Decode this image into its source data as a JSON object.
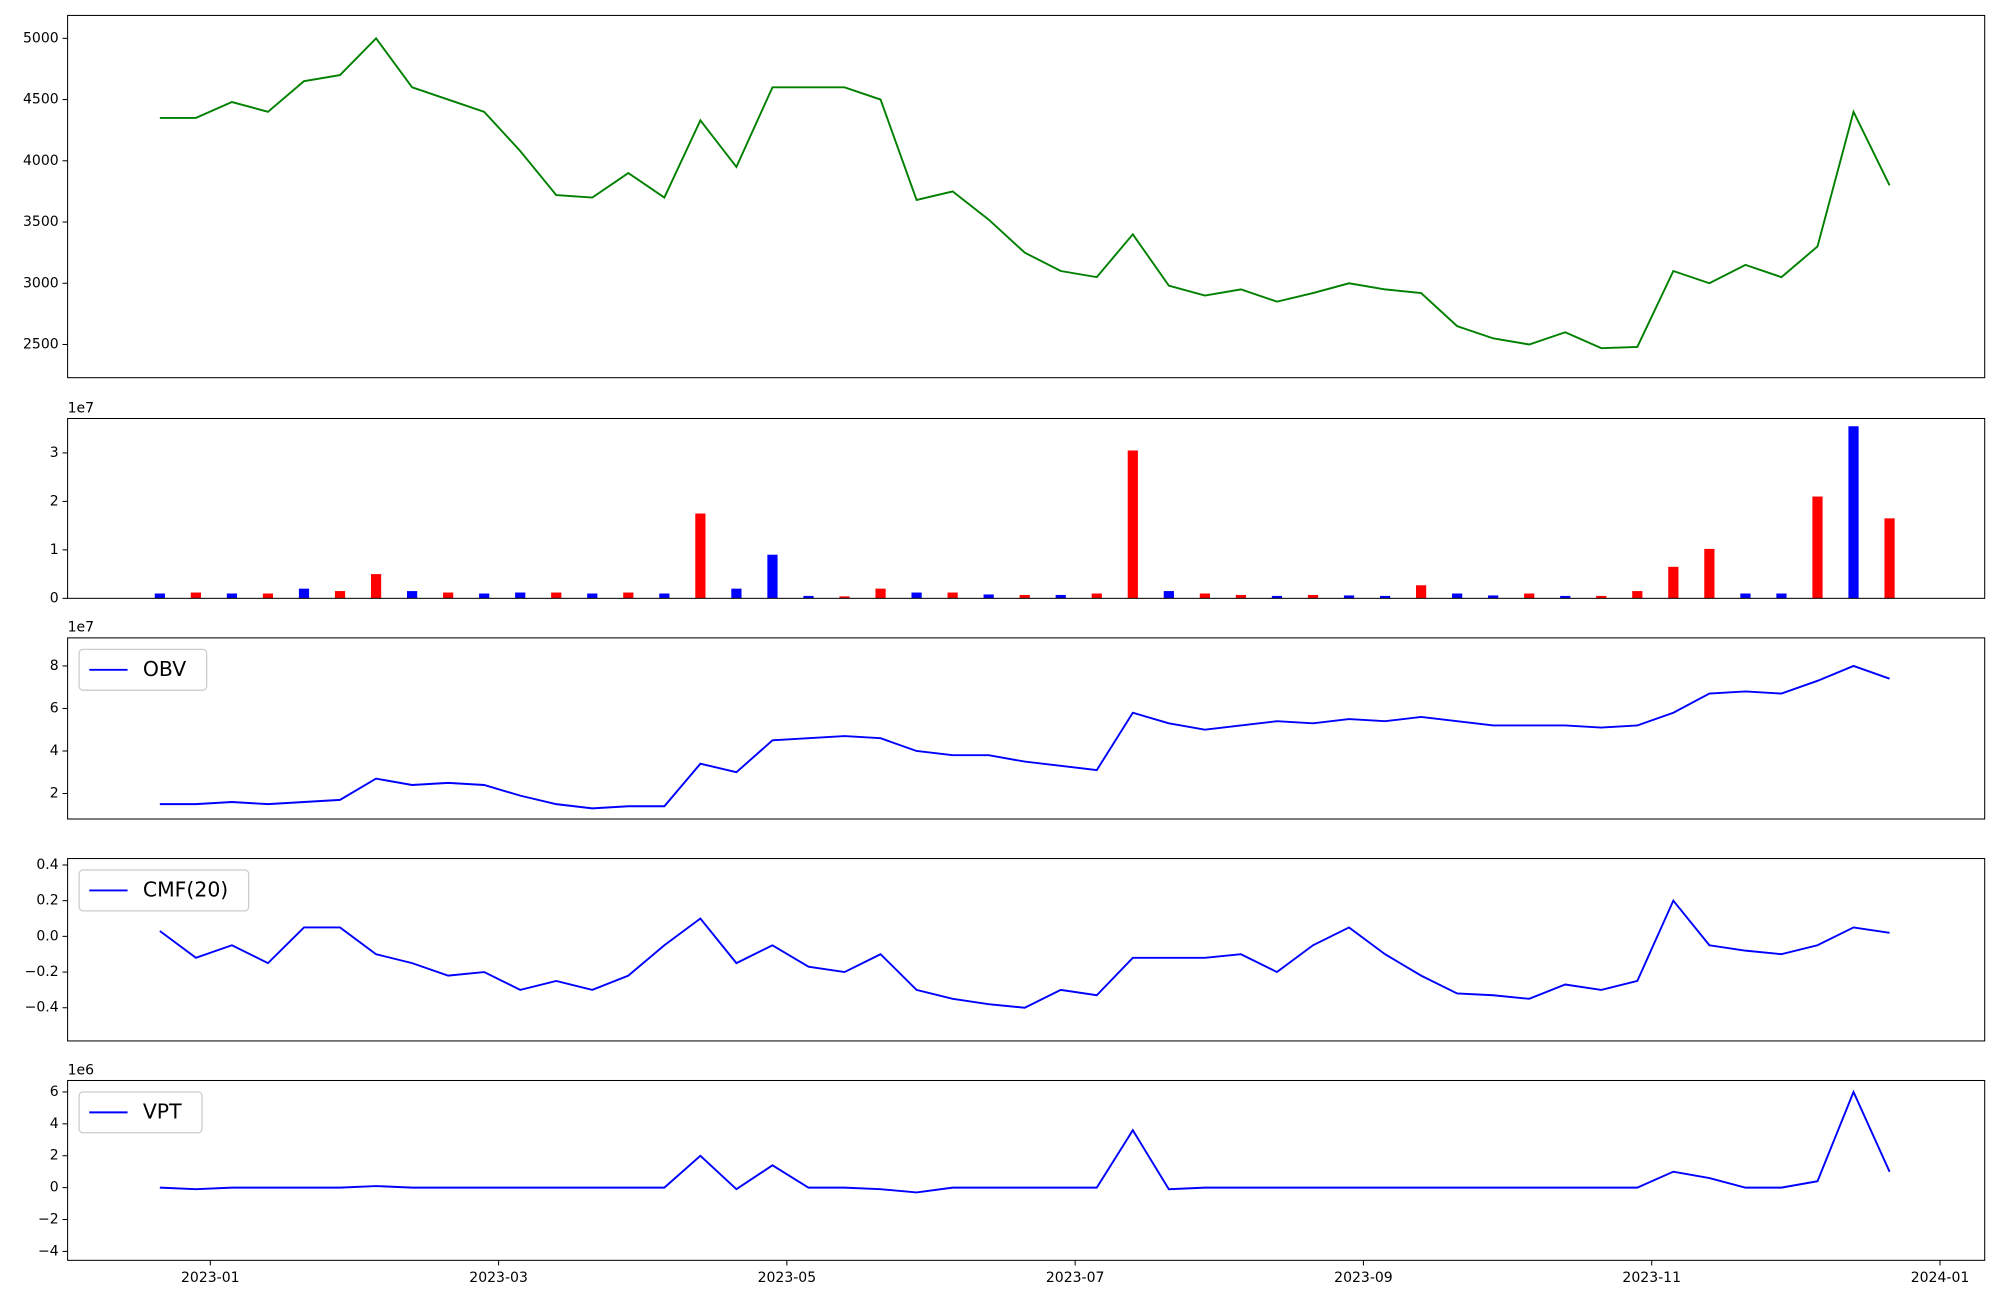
{
  "chart_data": [
    {
      "type": "line",
      "color": "green",
      "x": [
        -0.35,
        -0.1,
        0.15,
        0.4,
        0.65,
        0.9,
        1.15,
        1.4,
        1.65,
        1.9,
        2.15,
        2.4,
        2.65,
        2.9,
        3.15,
        3.4,
        3.65,
        3.9,
        4.15,
        4.4,
        4.65,
        4.9,
        5.15,
        5.4,
        5.65,
        5.9,
        6.15,
        6.4,
        6.65,
        6.9,
        7.15,
        7.4,
        7.65,
        7.9,
        8.15,
        8.4,
        8.65,
        8.9,
        9.15,
        9.4,
        9.65,
        9.9,
        10.15,
        10.4,
        10.65,
        10.9,
        11.15,
        11.4,
        11.65
      ],
      "values": [
        4350,
        4350,
        4480,
        4400,
        4650,
        4700,
        5000,
        4600,
        4500,
        4400,
        4080,
        3720,
        3700,
        3900,
        3700,
        4330,
        3950,
        4600,
        4600,
        4600,
        4500,
        3680,
        3750,
        3520,
        3250,
        3100,
        3050,
        3400,
        2980,
        2900,
        2950,
        2850,
        2920,
        3000,
        2950,
        2920,
        2650,
        2550,
        2500,
        2600,
        2470,
        2480,
        3100,
        3000,
        3150,
        3050,
        3300,
        4400,
        3800
      ],
      "xlim": [
        -0.99,
        12.31
      ],
      "ylim": [
        2229,
        5187
      ],
      "yticks": [
        2500,
        3000,
        3500,
        4000,
        4500,
        5000
      ]
    },
    {
      "type": "bar",
      "offset_label": "1e7",
      "x": [
        -0.35,
        -0.1,
        0.15,
        0.4,
        0.65,
        0.9,
        1.15,
        1.4,
        1.65,
        1.9,
        2.15,
        2.4,
        2.65,
        2.9,
        3.15,
        3.4,
        3.65,
        3.9,
        4.15,
        4.4,
        4.65,
        4.9,
        5.15,
        5.4,
        5.65,
        5.9,
        6.15,
        6.4,
        6.65,
        6.9,
        7.15,
        7.4,
        7.65,
        7.9,
        8.15,
        8.4,
        8.65,
        8.9,
        9.15,
        9.4,
        9.65,
        9.9,
        10.15,
        10.4,
        10.65,
        10.9,
        11.15,
        11.4,
        11.65
      ],
      "values": [
        0.1,
        0.12,
        0.1,
        0.1,
        0.2,
        0.15,
        0.5,
        0.15,
        0.12,
        0.1,
        0.12,
        0.12,
        0.1,
        0.12,
        0.1,
        1.75,
        0.2,
        0.9,
        0.05,
        0.04,
        0.2,
        0.12,
        0.12,
        0.08,
        0.07,
        0.07,
        0.1,
        3.05,
        0.15,
        0.1,
        0.07,
        0.05,
        0.07,
        0.06,
        0.05,
        0.27,
        0.1,
        0.06,
        0.1,
        0.05,
        0.05,
        0.15,
        0.65,
        1.02,
        0.1,
        0.1,
        2.1,
        3.55,
        1.65
      ],
      "colors": [
        "blue",
        "red",
        "blue",
        "red",
        "blue",
        "red",
        "red",
        "blue",
        "red",
        "blue",
        "blue",
        "red",
        "blue",
        "red",
        "blue",
        "red",
        "blue",
        "blue",
        "blue",
        "red",
        "red",
        "blue",
        "red",
        "blue",
        "red",
        "blue",
        "red",
        "red",
        "blue",
        "red",
        "red",
        "blue",
        "red",
        "blue",
        "blue",
        "red",
        "blue",
        "blue",
        "red",
        "blue",
        "red",
        "red",
        "red",
        "red",
        "blue",
        "blue",
        "red",
        "blue",
        "red"
      ],
      "xlim": [
        -0.99,
        12.31
      ],
      "ylim": [
        0,
        3.71
      ],
      "yticks": [
        0,
        1,
        2,
        3
      ]
    },
    {
      "type": "line",
      "offset_label": "1e7",
      "legend": "upper left",
      "x": [
        -0.35,
        -0.1,
        0.15,
        0.4,
        0.65,
        0.9,
        1.15,
        1.4,
        1.65,
        1.9,
        2.15,
        2.4,
        2.65,
        2.9,
        3.15,
        3.4,
        3.65,
        3.9,
        4.15,
        4.4,
        4.65,
        4.9,
        5.15,
        5.4,
        5.65,
        5.9,
        6.15,
        6.4,
        6.65,
        6.9,
        7.15,
        7.4,
        7.65,
        7.9,
        8.15,
        8.4,
        8.65,
        8.9,
        9.15,
        9.4,
        9.65,
        9.9,
        10.15,
        10.4,
        10.65,
        10.9,
        11.15,
        11.4,
        11.65
      ],
      "series": [
        {
          "name": "OBV",
          "color": "blue",
          "values": [
            1.5,
            1.5,
            1.6,
            1.5,
            1.6,
            1.7,
            2.7,
            2.4,
            2.5,
            2.4,
            1.9,
            1.5,
            1.3,
            1.4,
            1.4,
            3.4,
            3.0,
            4.5,
            4.6,
            4.7,
            4.6,
            4.0,
            3.8,
            3.8,
            3.5,
            3.3,
            3.1,
            5.8,
            5.3,
            5.0,
            5.2,
            5.4,
            5.3,
            5.5,
            5.4,
            5.6,
            5.4,
            5.2,
            5.2,
            5.2,
            5.1,
            5.2,
            5.8,
            6.7,
            6.8,
            6.7,
            7.3,
            8.0,
            7.4
          ]
        }
      ],
      "xlim": [
        -0.99,
        12.31
      ],
      "ylim": [
        0.8,
        9.32
      ],
      "yticks": [
        2,
        4,
        6,
        8
      ]
    },
    {
      "type": "line",
      "legend": "upper left",
      "x": [
        -0.35,
        -0.1,
        0.15,
        0.4,
        0.65,
        0.9,
        1.15,
        1.4,
        1.65,
        1.9,
        2.15,
        2.4,
        2.65,
        2.9,
        3.15,
        3.4,
        3.65,
        3.9,
        4.15,
        4.4,
        4.65,
        4.9,
        5.15,
        5.4,
        5.65,
        5.9,
        6.15,
        6.4,
        6.65,
        6.9,
        7.15,
        7.4,
        7.65,
        7.9,
        8.15,
        8.4,
        8.65,
        8.9,
        9.15,
        9.4,
        9.65,
        9.9,
        10.15,
        10.4,
        10.65,
        10.9,
        11.15,
        11.4,
        11.65
      ],
      "series": [
        {
          "name": "CMF(20)",
          "color": "blue",
          "values": [
            0.03,
            -0.12,
            -0.05,
            -0.15,
            0.05,
            0.05,
            -0.1,
            -0.15,
            -0.22,
            -0.2,
            -0.3,
            -0.25,
            -0.3,
            -0.22,
            -0.05,
            0.1,
            -0.15,
            -0.05,
            -0.17,
            -0.2,
            -0.1,
            -0.3,
            -0.35,
            -0.38,
            -0.4,
            -0.3,
            -0.33,
            -0.12,
            -0.12,
            -0.12,
            -0.1,
            -0.2,
            -0.05,
            0.05,
            -0.1,
            -0.22,
            -0.32,
            -0.33,
            -0.35,
            -0.27,
            -0.3,
            -0.25,
            0.2,
            -0.05,
            -0.08,
            -0.1,
            -0.05,
            0.05,
            0.02
          ]
        }
      ],
      "xlim": [
        -0.99,
        12.31
      ],
      "ylim": [
        -0.586,
        0.436
      ],
      "yticks": [
        {
          "value": -0.4,
          "label": "−0.4"
        },
        {
          "value": -0.2,
          "label": "−0.2"
        },
        {
          "value": 0,
          "label": "0.0"
        },
        0.2,
        0.4
      ]
    },
    {
      "type": "line",
      "offset_label": "1e6",
      "legend": "upper left",
      "x": [
        -0.35,
        -0.1,
        0.15,
        0.4,
        0.65,
        0.9,
        1.15,
        1.4,
        1.65,
        1.9,
        2.15,
        2.4,
        2.65,
        2.9,
        3.15,
        3.4,
        3.65,
        3.9,
        4.15,
        4.4,
        4.65,
        4.9,
        5.15,
        5.4,
        5.65,
        5.9,
        6.15,
        6.4,
        6.65,
        6.9,
        7.15,
        7.4,
        7.65,
        7.9,
        8.15,
        8.4,
        8.65,
        8.9,
        9.15,
        9.4,
        9.65,
        9.9,
        10.15,
        10.4,
        10.65,
        10.9,
        11.15,
        11.4,
        11.65
      ],
      "series": [
        {
          "name": "VPT",
          "color": "blue",
          "values": [
            0,
            -0.1,
            0,
            0,
            0,
            0,
            0.1,
            0,
            0,
            0,
            0,
            0,
            0,
            0,
            0,
            2.0,
            -0.1,
            1.4,
            0,
            0,
            -0.1,
            -0.3,
            0,
            0,
            0,
            0,
            0,
            3.6,
            -0.1,
            0,
            0,
            0,
            0,
            0,
            0,
            0,
            0,
            0,
            0,
            0,
            0,
            0,
            1.0,
            0.6,
            0,
            0,
            0.4,
            6.0,
            1.0
          ]
        }
      ],
      "xlim": [
        -0.99,
        12.31
      ],
      "ylim": [
        -4.56,
        6.72
      ],
      "yticks": [
        {
          "value": -4,
          "label": "−4"
        },
        {
          "value": -2,
          "label": "−2"
        },
        0,
        2,
        4,
        6
      ],
      "xticks": [
        {
          "value": 0,
          "label": "2023-01"
        },
        {
          "value": 2,
          "label": "2023-03"
        },
        {
          "value": 4,
          "label": "2023-05"
        },
        {
          "value": 6,
          "label": "2023-07"
        },
        {
          "value": 8,
          "label": "2023-09"
        },
        {
          "value": 10,
          "label": "2023-11"
        },
        {
          "value": 12,
          "label": "2024-01"
        }
      ]
    }
  ]
}
